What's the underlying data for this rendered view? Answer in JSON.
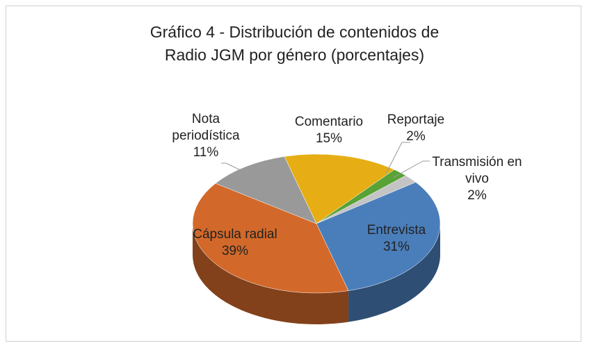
{
  "chart_data": {
    "type": "pie",
    "title": "Gráfico 4 - Distribución de contenidos de Radio JGM por género (porcentajes)",
    "categories": [
      "Comentario",
      "Reportaje",
      "Transmisión en vivo",
      "Entrevista",
      "Cápsula radial",
      "Nota periodística"
    ],
    "values": [
      15,
      2,
      2,
      31,
      39,
      11
    ],
    "value_labels": [
      "15%",
      "2%",
      "2%",
      "31%",
      "39%",
      "11%"
    ],
    "colors": [
      "#e6ae14",
      "#58a236",
      "#c4c4c4",
      "#4a7ebb",
      "#d2692a",
      "#999999"
    ]
  }
}
